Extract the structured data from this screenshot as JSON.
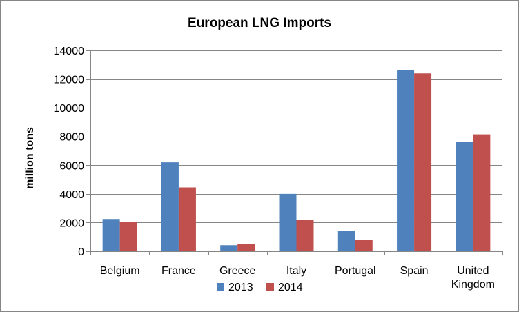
{
  "chart_data": {
    "type": "bar",
    "title": "European LNG Imports",
    "xlabel": "",
    "ylabel": "million tons",
    "ylim": [
      0,
      14000
    ],
    "yticks": [
      0,
      2000,
      4000,
      6000,
      8000,
      10000,
      12000,
      14000
    ],
    "grid": true,
    "legend_position": "bottom",
    "categories": [
      "Belgium",
      "France",
      "Greece",
      "Italy",
      "Portugal",
      "Spain",
      "United Kingdom"
    ],
    "category_lines": [
      [
        "Belgium"
      ],
      [
        "France"
      ],
      [
        "Greece"
      ],
      [
        "Italy"
      ],
      [
        "Portugal"
      ],
      [
        "Spain"
      ],
      [
        "United",
        "Kingdom"
      ]
    ],
    "series": [
      {
        "name": "2013",
        "color": "#4F81BD",
        "values": [
          2250,
          6200,
          420,
          4000,
          1430,
          12650,
          7650
        ]
      },
      {
        "name": "2014",
        "color": "#C0504D",
        "values": [
          2050,
          4450,
          520,
          2200,
          800,
          12400,
          8150
        ]
      }
    ]
  }
}
